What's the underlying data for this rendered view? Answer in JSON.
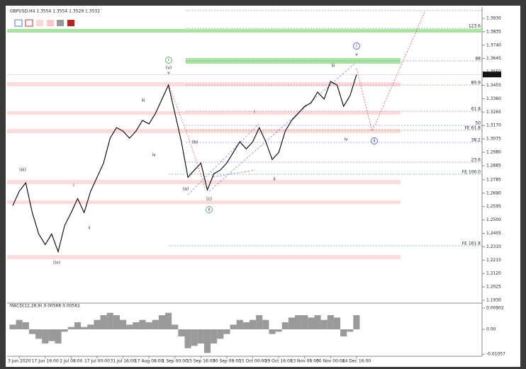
{
  "chart_data": [
    {
      "type": "line",
      "title": "GBPUSD,H4 1.3554 1.3554 1.3529 1.3532",
      "color": "#000000",
      "categories": [
        null,
        "3 Jun 2020",
        null,
        null,
        null,
        "17 Jun 16:00",
        null,
        null,
        null,
        "2 Jul 08:00",
        null,
        null,
        null,
        "17 Jul 00:00",
        null,
        null,
        null,
        "31 Jul 16:00",
        null,
        null,
        null,
        "17 Aug 08:00",
        null,
        null,
        null,
        "1 Sep 00:00",
        null,
        null,
        null,
        "15 Sep 16:00",
        null,
        null,
        null,
        "30 Sep 08:00",
        null,
        null,
        null,
        "15 Oct 00:00",
        null,
        null,
        null,
        "29 Oct 16:00",
        null,
        null,
        null,
        "13 Nov 08:00",
        null,
        null,
        null,
        "30 Nov 00:00",
        null,
        null,
        null,
        "14 Dec 16:00"
      ],
      "values": [
        1.2602,
        1.2703,
        1.2763,
        1.2552,
        1.2401,
        1.2325,
        1.2401,
        1.2275,
        1.2461,
        1.2552,
        1.2652,
        1.2552,
        1.2703,
        1.2803,
        1.2904,
        1.308,
        1.3155,
        1.313,
        1.308,
        1.313,
        1.3206,
        1.3181,
        1.3256,
        1.3357,
        1.3457,
        1.3256,
        1.3055,
        1.2803,
        1.2854,
        1.2904,
        1.2713,
        1.2828,
        1.2854,
        1.2904,
        1.2979,
        1.3055,
        1.3004,
        1.3055,
        1.3155,
        1.3055,
        1.2929,
        1.2979,
        1.313,
        1.3206,
        1.3256,
        1.3306,
        1.3331,
        1.3407,
        1.3357,
        1.3482,
        1.3457,
        1.3306,
        1.3382,
        1.3532
      ],
      "last_price": 1.3532,
      "ylim": [
        1.191,
        1.399
      ],
      "yticks": [
        {
          "value": 1.393,
          "label": "1.3930"
        },
        1.3835,
        {
          "value": 1.374,
          "label": "1.3740"
        },
        1.3645,
        {
          "value": 1.355,
          "label": "1.3550"
        },
        1.3455,
        {
          "value": 1.336,
          "label": "1.3360"
        },
        1.3265,
        {
          "value": 1.317,
          "label": "1.3170"
        },
        1.3075,
        {
          "value": 1.298,
          "label": "1.2980"
        },
        1.2885,
        1.2785,
        {
          "value": 1.269,
          "label": "1.2690"
        },
        1.2595,
        {
          "value": 1.25,
          "label": "1.2500"
        },
        1.2405,
        {
          "value": 1.231,
          "label": "1.2310"
        },
        1.2215,
        {
          "value": 1.212,
          "label": "1.2120"
        },
        1.2025,
        {
          "value": 1.193,
          "label": "1.1930"
        }
      ],
      "levels": [
        {
          "text": "123.6",
          "color": "#4a5fd0"
        },
        {
          "text": "88",
          "color": "#4a5fd0"
        },
        {
          "text": "80.9",
          "color": "#4a5fd0"
        },
        {
          "text": "61.8",
          "color": "#4a5fd0"
        },
        {
          "text": "50",
          "color": "#4a5fd0"
        },
        {
          "text": "FE 61.8",
          "color": "#2e8b2e"
        },
        {
          "text": "38.2",
          "color": "#4a5fd0"
        },
        {
          "text": "23.6",
          "color": "#4a5fd0"
        },
        {
          "text": "FE 100.0",
          "color": "#2e8b2e"
        },
        {
          "text": "FE 161.8",
          "color": "#2e8b2e"
        }
      ],
      "waves": [
        {
          "text": "(iii)",
          "color": "#1f3fd0"
        },
        {
          "text": "i",
          "color": "#d02020"
        },
        {
          "text": "ii",
          "color": "#d02020"
        },
        {
          "text": "(iv)",
          "color": "#1f3fd0"
        },
        {
          "text": "iii",
          "color": "#d02020"
        },
        {
          "text": "iv",
          "color": "#d02020"
        },
        {
          "text": "i",
          "color": "#2e9b2e",
          "circled": true
        },
        {
          "text": "(v)",
          "color": "#2e9b2e"
        },
        {
          "text": "v",
          "color": "#d02020"
        },
        {
          "text": "(b)",
          "color": "#d02020"
        },
        {
          "text": "(a)",
          "color": "#d02020"
        },
        {
          "text": "(c)",
          "color": "#d02020"
        },
        {
          "text": "ii",
          "color": "#2e9b2e",
          "circled": true
        },
        {
          "text": "i",
          "color": "#d02020"
        },
        {
          "text": "ii",
          "color": "#d02020"
        },
        {
          "text": "iii",
          "color": "#d02020"
        },
        {
          "text": "iv",
          "color": "#d02020"
        },
        {
          "text": "v",
          "color": "#d02020"
        },
        {
          "text": "i",
          "color": "#1f3fd0",
          "circled": true
        },
        {
          "text": "ii",
          "color": "#1f3fd0",
          "circled": true
        }
      ]
    },
    {
      "type": "bar",
      "title": "MACD(12,26,9) 0.00566 0.00561",
      "color": "#9a9a9a",
      "values": [
        0.002,
        0.004,
        0.003,
        -0.002,
        -0.004,
        -0.006,
        -0.005,
        -0.006,
        -0.001,
        0.001,
        0.003,
        0.001,
        0.002,
        0.004,
        0.006,
        0.007,
        0.006,
        0.004,
        0.002,
        0.003,
        0.004,
        0.003,
        0.004,
        0.006,
        0.007,
        0.002,
        -0.003,
        -0.008,
        -0.007,
        -0.006,
        -0.01,
        -0.006,
        -0.004,
        -0.002,
        0.002,
        0.004,
        0.003,
        0.004,
        0.006,
        0.004,
        -0.002,
        -0.001,
        0.003,
        0.005,
        0.006,
        0.006,
        0.005,
        0.006,
        0.004,
        0.006,
        0.005,
        -0.003,
        -0.001,
        0.006
      ],
      "ylim": [
        -0.0111,
        0.0105
      ],
      "yticks": [
        0.00902,
        {
          "value": 0,
          "label": "0.00"
        },
        -0.01057
      ]
    }
  ]
}
